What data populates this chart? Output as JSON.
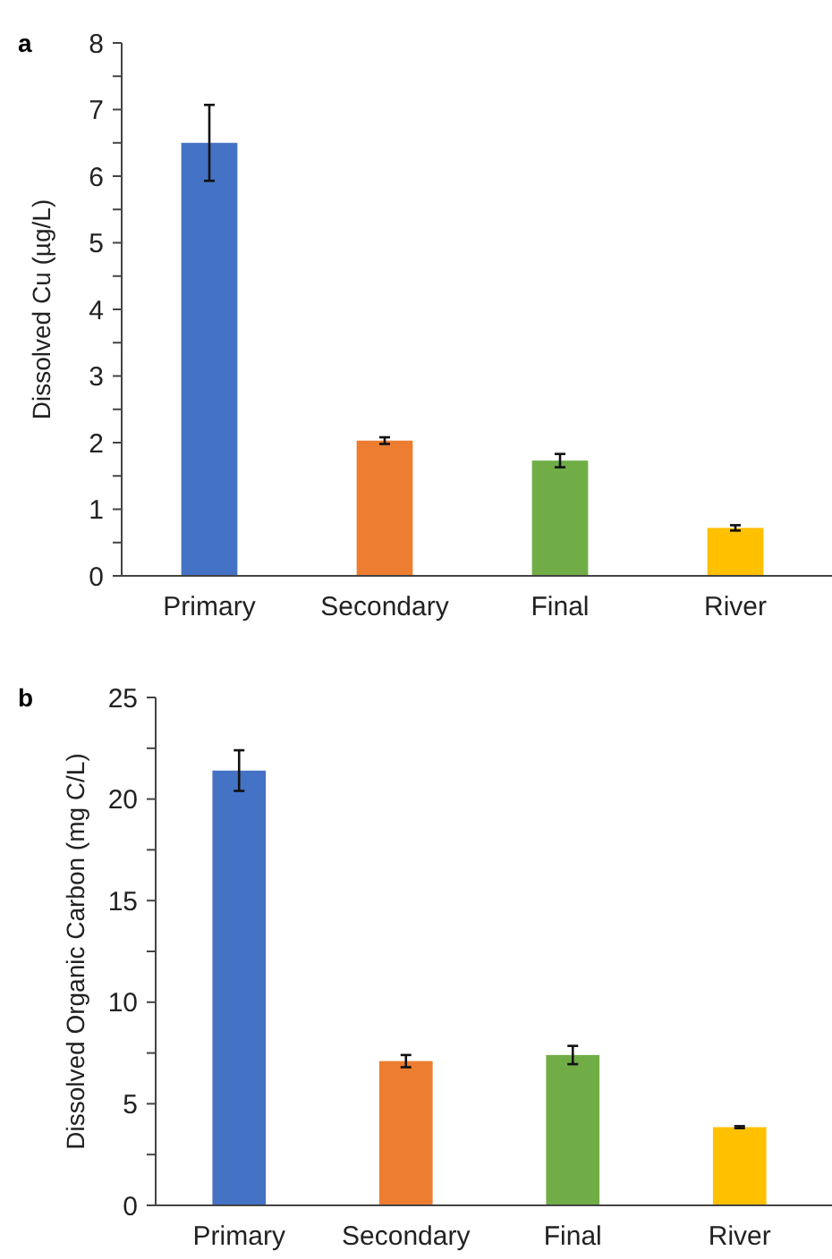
{
  "chart_data": [
    {
      "type": "bar",
      "title": "a",
      "ylabel": "Dissolved Cu (µg/L)",
      "categories": [
        "Primary",
        "Secondary",
        "Final",
        "River"
      ],
      "values": [
        6.5,
        2.03,
        1.73,
        0.72
      ],
      "errors": [
        0.57,
        0.05,
        0.1,
        0.04
      ],
      "colors": [
        "#4472c4",
        "#ed7d31",
        "#70ad47",
        "#ffc000"
      ],
      "ylim": [
        0,
        8
      ],
      "yticks": [
        0,
        {
          "value": 0.5,
          "label": null
        },
        1,
        {
          "value": 1.5,
          "label": null
        },
        2,
        {
          "value": 2.5,
          "label": null
        },
        3,
        {
          "value": 3.5,
          "label": null
        },
        4,
        {
          "value": 4.5,
          "label": null
        },
        5,
        {
          "value": 5.5,
          "label": null
        },
        6,
        {
          "value": 6.5,
          "label": null
        },
        7,
        {
          "value": 7.5,
          "label": null
        },
        8
      ]
    },
    {
      "type": "bar",
      "title": "b",
      "ylabel": "Dissolved Organic Carbon  (mg C/L)",
      "categories": [
        "Primary",
        "Secondary",
        "Final",
        "River"
      ],
      "values": [
        21.4,
        7.1,
        7.4,
        3.85
      ],
      "errors": [
        1.0,
        0.3,
        0.45,
        0.05
      ],
      "colors": [
        "#4472c4",
        "#ed7d31",
        "#70ad47",
        "#ffc000"
      ],
      "ylim": [
        0,
        25
      ],
      "yticks": [
        0,
        {
          "value": 2.5,
          "label": null
        },
        5,
        {
          "value": 7.5,
          "label": null
        },
        10,
        {
          "value": 12.5,
          "label": null
        },
        15,
        {
          "value": 17.5,
          "label": null
        },
        20,
        {
          "value": 22.5,
          "label": null
        },
        25
      ]
    }
  ]
}
